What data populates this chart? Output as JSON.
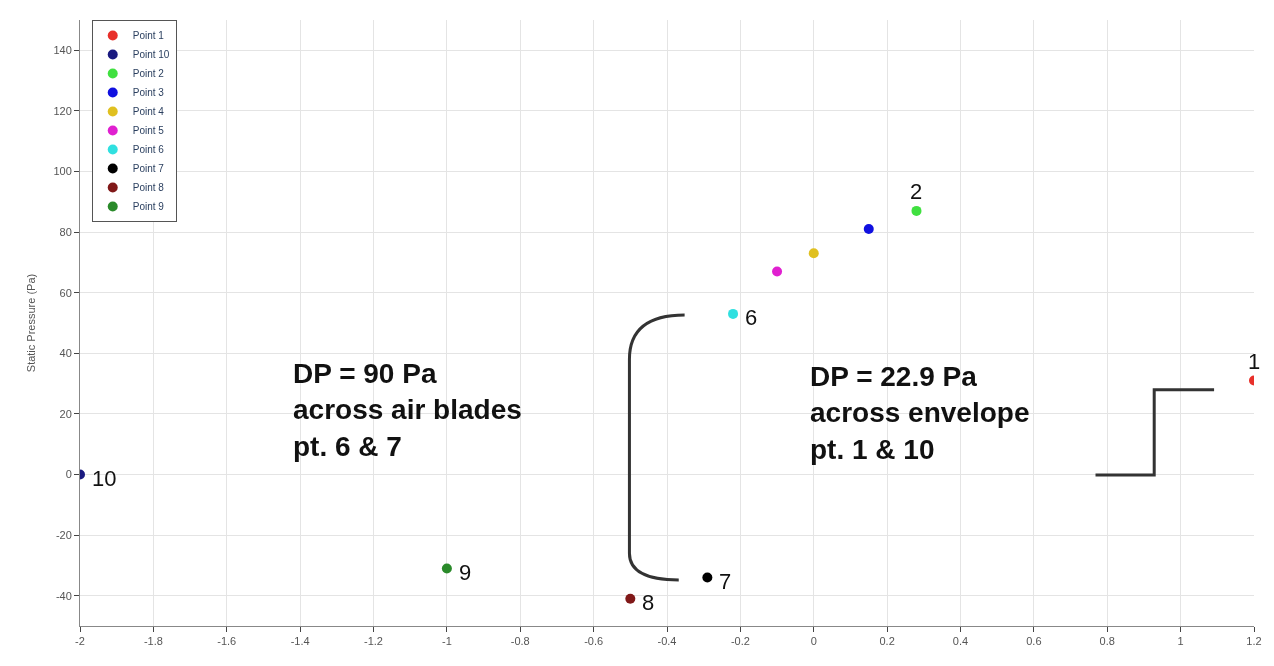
{
  "chart_data": {
    "type": "scatter",
    "ylabel": "Static Pressure (Pa)",
    "marker": "circle",
    "legend": "top left",
    "grid": true,
    "xlim": [
      -2,
      1.2
    ],
    "xticks": [
      -2,
      -1.8,
      -1.6,
      -1.4,
      -1.2,
      -1,
      -0.8,
      -0.6,
      -0.4,
      -0.2,
      0,
      0.2,
      0.4,
      0.6,
      0.8,
      1,
      1.2
    ],
    "ylim": [
      -50,
      150
    ],
    "yticks": [
      -40,
      -20,
      0,
      20,
      40,
      60,
      80,
      100,
      120,
      140
    ],
    "series": [
      {
        "name": "Point 1",
        "color": "#e8302a",
        "x": [
          1.2
        ],
        "values": [
          31
        ]
      },
      {
        "name": "Point 10",
        "color": "#1a1a80",
        "x": [
          -2
        ],
        "values": [
          0
        ]
      },
      {
        "name": "Point 2",
        "color": "#40e040",
        "x": [
          0.28
        ],
        "values": [
          87
        ]
      },
      {
        "name": "Point 3",
        "color": "#1010e0",
        "x": [
          0.15
        ],
        "values": [
          81
        ]
      },
      {
        "name": "Point 4",
        "color": "#e0c020",
        "x": [
          0
        ],
        "values": [
          73
        ]
      },
      {
        "name": "Point 5",
        "color": "#e020d0",
        "x": [
          -0.1
        ],
        "values": [
          67
        ]
      },
      {
        "name": "Point 6",
        "color": "#30e0e0",
        "x": [
          -0.22
        ],
        "values": [
          53
        ]
      },
      {
        "name": "Point 7",
        "color": "#000000",
        "x": [
          -0.29
        ],
        "values": [
          -34
        ]
      },
      {
        "name": "Point 8",
        "color": "#801818",
        "x": [
          -0.5
        ],
        "values": [
          -41
        ]
      },
      {
        "name": "Point 9",
        "color": "#2a8a2a",
        "x": [
          -1
        ],
        "values": [
          -31
        ]
      }
    ],
    "annotations": [
      {
        "text": "1",
        "x": 1.2,
        "y": 31
      },
      {
        "text": "2",
        "x": 0.28,
        "y": 87
      },
      {
        "text": "6",
        "x": -0.22,
        "y": 53
      },
      {
        "text": "7",
        "x": -0.29,
        "y": -34
      },
      {
        "text": "8",
        "x": -0.5,
        "y": -41
      },
      {
        "text": "9",
        "x": -1,
        "y": -31
      },
      {
        "text": "10",
        "x": -2,
        "y": 0
      },
      "DP = 90 Pa\nacross air blades\npt. 6 & 7",
      "DP = 22.9 Pa\nacross envelope\npt. 1 & 10"
    ]
  }
}
